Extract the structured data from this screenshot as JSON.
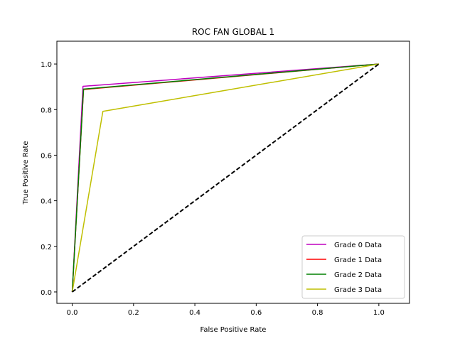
{
  "chart_data": {
    "type": "line",
    "title": "ROC FAN GLOBAL 1",
    "xlabel": "False Positive Rate",
    "ylabel": "True Positive Rate",
    "xlim": [
      -0.05,
      1.1
    ],
    "ylim": [
      -0.05,
      1.1
    ],
    "xticks": [
      0.0,
      0.2,
      0.4,
      0.6,
      0.8,
      1.0
    ],
    "yticks": [
      0.0,
      0.2,
      0.4,
      0.6,
      0.8,
      1.0
    ],
    "xtick_labels": [
      "0.0",
      "0.2",
      "0.4",
      "0.6",
      "0.8",
      "1.0"
    ],
    "ytick_labels": [
      "0.0",
      "0.2",
      "0.4",
      "0.6",
      "0.8",
      "1.0"
    ],
    "grid": false,
    "legend_position": "lower-right",
    "series": [
      {
        "name": "Grade 0 Data",
        "color": "#bf00bf",
        "x": [
          0.0,
          0.035,
          1.0
        ],
        "y": [
          0.0,
          0.902,
          1.0
        ]
      },
      {
        "name": "Grade 1 Data",
        "color": "#ff0000",
        "x": [
          0.0,
          0.037,
          1.0
        ],
        "y": [
          0.0,
          0.888,
          1.0
        ]
      },
      {
        "name": "Grade 2 Data",
        "color": "#008000",
        "x": [
          0.0,
          0.037,
          1.0
        ],
        "y": [
          0.0,
          0.89,
          1.0
        ]
      },
      {
        "name": "Grade 3 Data",
        "color": "#bfbf00",
        "x": [
          0.0,
          0.1,
          1.0
        ],
        "y": [
          0.0,
          0.792,
          1.0
        ]
      }
    ],
    "reference_line": {
      "color": "#000000",
      "style": "dashed",
      "x": [
        0.0,
        1.0
      ],
      "y": [
        0.0,
        1.0
      ]
    }
  }
}
